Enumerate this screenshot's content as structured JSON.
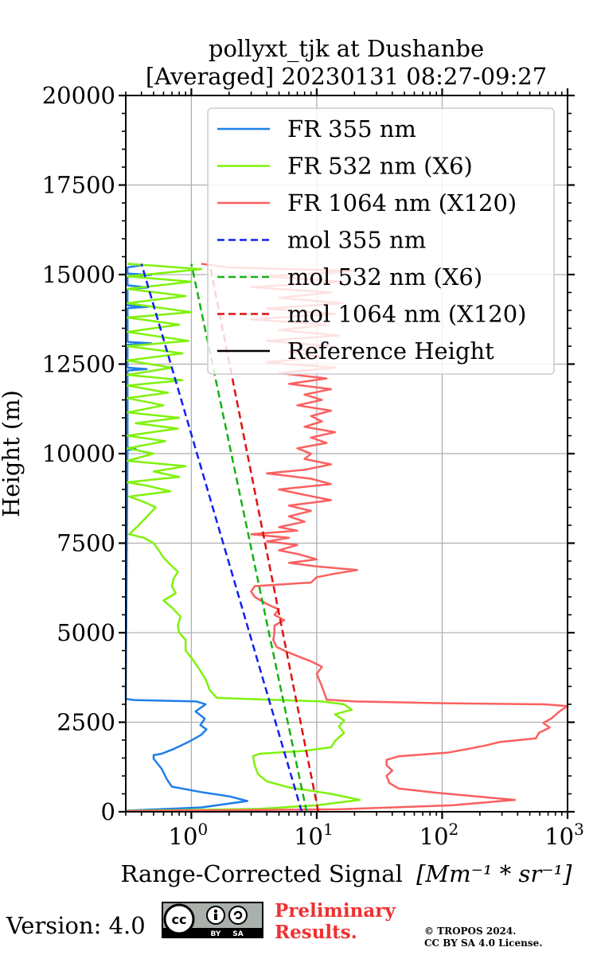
{
  "chart_data": {
    "type": "line",
    "title_line1": "pollyxt_tjk at Dushanbe",
    "title_line2": "[Averaged] 20230131 08:27-09:27",
    "xlabel": "Range-Corrected Signal",
    "xlabel_unit": "[Mm⁻¹ * sr⁻¹]",
    "ylabel": "Height (m)",
    "x_scale": "log",
    "xlim": [
      0.3,
      1000
    ],
    "ylim": [
      0,
      20000
    ],
    "grid": true,
    "legend_position": "top-right",
    "x_ticks": [
      {
        "value": 1,
        "base": "10",
        "exp": "0"
      },
      {
        "value": 10,
        "base": "10",
        "exp": "1"
      },
      {
        "value": 100,
        "base": "10",
        "exp": "2"
      },
      {
        "value": 1000,
        "base": "10",
        "exp": "3"
      }
    ],
    "y_ticks": [
      {
        "value": 0,
        "label": "0"
      },
      {
        "value": 2500,
        "label": "2500"
      },
      {
        "value": 5000,
        "label": "5000"
      },
      {
        "value": 7500,
        "label": "7500"
      },
      {
        "value": 10000,
        "label": "10000"
      },
      {
        "value": 12500,
        "label": "12500"
      },
      {
        "value": 15000,
        "label": "15000"
      },
      {
        "value": 17500,
        "label": "17500"
      },
      {
        "value": 20000,
        "label": "20000"
      }
    ],
    "series": [
      {
        "name": "FR 355 nm",
        "color": "#1f7fe8",
        "dash": false,
        "points": [
          [
            0.3,
            30
          ],
          [
            1.2,
            120
          ],
          [
            2.8,
            300
          ],
          [
            2.0,
            430
          ],
          [
            1.2,
            550
          ],
          [
            0.7,
            700
          ],
          [
            0.64,
            900
          ],
          [
            0.58,
            1200
          ],
          [
            0.5,
            1480
          ],
          [
            0.5,
            1580
          ],
          [
            0.58,
            1620
          ],
          [
            0.72,
            1750
          ],
          [
            0.95,
            1950
          ],
          [
            1.2,
            2150
          ],
          [
            1.32,
            2300
          ],
          [
            1.18,
            2420
          ],
          [
            1.28,
            2600
          ],
          [
            1.08,
            2800
          ],
          [
            1.3,
            3000
          ],
          [
            1.1,
            3080
          ],
          [
            0.35,
            3120
          ],
          [
            0.3,
            3150
          ],
          [
            0.31,
            10100
          ],
          [
            0.36,
            10130
          ],
          [
            0.31,
            10170
          ],
          [
            0.31,
            12320
          ],
          [
            0.44,
            12360
          ],
          [
            0.31,
            12400
          ],
          [
            0.31,
            13040
          ],
          [
            0.48,
            13080
          ],
          [
            0.31,
            13120
          ],
          [
            0.31,
            14060
          ],
          [
            0.45,
            14100
          ],
          [
            0.31,
            14140
          ],
          [
            0.31,
            14600
          ],
          [
            0.45,
            14640
          ],
          [
            0.31,
            14700
          ],
          [
            0.31,
            14950
          ],
          [
            0.48,
            14990
          ],
          [
            0.31,
            15030
          ],
          [
            0.31,
            15200
          ],
          [
            0.4,
            15260
          ],
          [
            0.31,
            15300
          ]
        ]
      },
      {
        "name": "FR 532 nm (X6)",
        "color": "#80f20c",
        "dash": false,
        "points": [
          [
            0.3,
            25
          ],
          [
            3.5,
            80
          ],
          [
            10,
            180
          ],
          [
            22,
            330
          ],
          [
            13,
            500
          ],
          [
            6,
            680
          ],
          [
            4.0,
            850
          ],
          [
            3.4,
            1050
          ],
          [
            3.2,
            1300
          ],
          [
            3.1,
            1550
          ],
          [
            3.5,
            1620
          ],
          [
            8,
            1700
          ],
          [
            13,
            1800
          ],
          [
            14,
            1980
          ],
          [
            16.5,
            2200
          ],
          [
            15,
            2380
          ],
          [
            16.5,
            2550
          ],
          [
            14,
            2720
          ],
          [
            19,
            2850
          ],
          [
            16.5,
            3000
          ],
          [
            11,
            3080
          ],
          [
            4,
            3130
          ],
          [
            1.6,
            3180
          ],
          [
            1.4,
            3400
          ],
          [
            1.3,
            3700
          ],
          [
            1.15,
            4000
          ],
          [
            1.0,
            4300
          ],
          [
            0.9,
            4500
          ],
          [
            0.9,
            4800
          ],
          [
            0.8,
            5000
          ],
          [
            0.78,
            5200
          ],
          [
            0.82,
            5450
          ],
          [
            0.7,
            5700
          ],
          [
            0.6,
            5900
          ],
          [
            0.75,
            6100
          ],
          [
            0.7,
            6300
          ],
          [
            0.72,
            6500
          ],
          [
            0.78,
            6700
          ],
          [
            0.68,
            6900
          ],
          [
            0.6,
            7100
          ],
          [
            0.55,
            7300
          ],
          [
            0.5,
            7500
          ],
          [
            0.42,
            7650
          ],
          [
            0.32,
            7750
          ],
          [
            0.38,
            8000
          ],
          [
            0.46,
            8300
          ],
          [
            0.52,
            8500
          ],
          [
            0.42,
            8650
          ],
          [
            0.32,
            8800
          ],
          [
            0.68,
            8950
          ],
          [
            0.45,
            9100
          ],
          [
            0.31,
            9200
          ],
          [
            0.8,
            9350
          ],
          [
            0.5,
            9500
          ],
          [
            0.9,
            9650
          ],
          [
            0.31,
            9800
          ],
          [
            0.5,
            10000
          ],
          [
            0.31,
            10150
          ],
          [
            0.62,
            10350
          ],
          [
            0.31,
            10500
          ],
          [
            0.78,
            10700
          ],
          [
            0.36,
            10850
          ],
          [
            0.8,
            11000
          ],
          [
            0.31,
            11150
          ],
          [
            0.6,
            11350
          ],
          [
            0.31,
            11550
          ],
          [
            0.65,
            11700
          ],
          [
            0.31,
            11900
          ],
          [
            0.85,
            12050
          ],
          [
            0.31,
            12200
          ],
          [
            0.7,
            12400
          ],
          [
            0.31,
            12600
          ],
          [
            0.85,
            12800
          ],
          [
            0.31,
            13000
          ],
          [
            0.95,
            13150
          ],
          [
            0.31,
            13400
          ],
          [
            0.8,
            13600
          ],
          [
            0.31,
            13800
          ],
          [
            1.0,
            13950
          ],
          [
            0.31,
            14200
          ],
          [
            0.9,
            14400
          ],
          [
            0.31,
            14600
          ],
          [
            1.0,
            14800
          ],
          [
            0.31,
            14950
          ],
          [
            1.2,
            15150
          ],
          [
            0.5,
            15250
          ],
          [
            0.31,
            15300
          ]
        ]
      },
      {
        "name": "FR 1064 nm (X120)",
        "color": "#fa6060",
        "dash": false,
        "points": [
          [
            0.3,
            20
          ],
          [
            15,
            70
          ],
          [
            120,
            180
          ],
          [
            380,
            330
          ],
          [
            200,
            420
          ],
          [
            90,
            530
          ],
          [
            45,
            650
          ],
          [
            38,
            800
          ],
          [
            36,
            1000
          ],
          [
            40,
            1150
          ],
          [
            36,
            1300
          ],
          [
            36,
            1450
          ],
          [
            45,
            1550
          ],
          [
            110,
            1650
          ],
          [
            170,
            1770
          ],
          [
            220,
            1850
          ],
          [
            290,
            1950
          ],
          [
            560,
            2050
          ],
          [
            590,
            2200
          ],
          [
            720,
            2350
          ],
          [
            640,
            2480
          ],
          [
            740,
            2600
          ],
          [
            800,
            2700
          ],
          [
            860,
            2800
          ],
          [
            950,
            2900
          ],
          [
            1000,
            2950
          ],
          [
            650,
            3000
          ],
          [
            100,
            3030
          ],
          [
            20,
            3080
          ],
          [
            12,
            3130
          ],
          [
            11,
            3500
          ],
          [
            10,
            3850
          ],
          [
            11,
            4050
          ],
          [
            9,
            4200
          ],
          [
            7,
            4350
          ],
          [
            5.5,
            4500
          ],
          [
            4.8,
            4600
          ],
          [
            4.5,
            4800
          ],
          [
            4.6,
            5000
          ],
          [
            4.6,
            5200
          ],
          [
            5.5,
            5350
          ],
          [
            4.6,
            5500
          ],
          [
            5.0,
            5650
          ],
          [
            4.0,
            5800
          ],
          [
            3.2,
            6000
          ],
          [
            3.0,
            6150
          ],
          [
            3.2,
            6300
          ],
          [
            9.0,
            6400
          ],
          [
            10,
            6550
          ],
          [
            14,
            6650
          ],
          [
            21,
            6750
          ],
          [
            10,
            6850
          ],
          [
            6,
            6950
          ],
          [
            10,
            7050
          ],
          [
            7,
            7200
          ],
          [
            5,
            7300
          ],
          [
            7,
            7450
          ],
          [
            4,
            7550
          ],
          [
            6,
            7650
          ],
          [
            3,
            7750
          ],
          [
            7,
            7850
          ],
          [
            5,
            7950
          ],
          [
            8,
            8100
          ],
          [
            6,
            8250
          ],
          [
            9,
            8400
          ],
          [
            6,
            8550
          ],
          [
            13,
            8700
          ],
          [
            8,
            8850
          ],
          [
            5,
            9000
          ],
          [
            13,
            9150
          ],
          [
            9,
            9300
          ],
          [
            4,
            9450
          ],
          [
            8,
            9550
          ],
          [
            13,
            9700
          ],
          [
            8,
            9850
          ],
          [
            9,
            10000
          ],
          [
            7,
            10150
          ],
          [
            12,
            10300
          ],
          [
            9,
            10450
          ],
          [
            14,
            10600
          ],
          [
            8,
            10750
          ],
          [
            11,
            10900
          ],
          [
            9,
            11050
          ],
          [
            13,
            11200
          ],
          [
            7,
            11350
          ],
          [
            11,
            11500
          ],
          [
            8,
            11650
          ],
          [
            13,
            11800
          ],
          [
            6,
            11950
          ],
          [
            12,
            12100
          ],
          [
            5,
            12250
          ],
          [
            14,
            12400
          ],
          [
            4,
            12550
          ],
          [
            11,
            12700
          ],
          [
            6,
            12850
          ],
          [
            13,
            13000
          ],
          [
            4,
            13150
          ],
          [
            15,
            13300
          ],
          [
            5,
            13450
          ],
          [
            12,
            13600
          ],
          [
            3,
            13750
          ],
          [
            14,
            13900
          ],
          [
            4,
            14050
          ],
          [
            16,
            14200
          ],
          [
            5,
            14350
          ],
          [
            13,
            14500
          ],
          [
            3,
            14650
          ],
          [
            16,
            14800
          ],
          [
            4,
            14950
          ],
          [
            20,
            15100
          ],
          [
            2,
            15200
          ],
          [
            1.2,
            15300
          ]
        ]
      },
      {
        "name": "mol 355 nm",
        "color": "#1020f0",
        "dash": true,
        "points": [
          [
            7.6,
            0
          ],
          [
            0.4,
            15300
          ]
        ]
      },
      {
        "name": "mol 532 nm (X6)",
        "color": "#15b215",
        "dash": true,
        "points": [
          [
            8.3,
            0
          ],
          [
            1.0,
            15300
          ]
        ]
      },
      {
        "name": "mol 1064 nm (X120)",
        "color": "#e01010",
        "dash": true,
        "points": [
          [
            10.3,
            0
          ],
          [
            1.4,
            15300
          ]
        ]
      },
      {
        "name": "Reference Height",
        "color": "#000000",
        "dash": false,
        "points": []
      }
    ]
  },
  "footer": {
    "version": "Version: 4.0",
    "badge_cc": "cc",
    "badge_by": "BY",
    "badge_sa": "SA",
    "prelim_line1": "Preliminary",
    "prelim_line2": "Results.",
    "copyright_line1": "© TROPOS 2024.",
    "copyright_line2": "CC BY SA 4.0 License."
  }
}
